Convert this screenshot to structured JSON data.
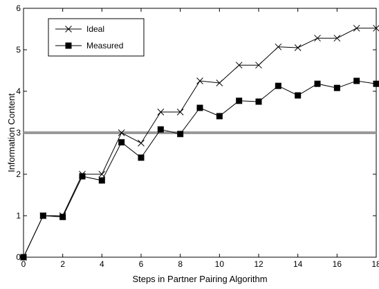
{
  "chart_data": {
    "type": "line",
    "title": "",
    "xlabel": "Steps in Partner Pairing Algorithm",
    "ylabel": "Information Content",
    "xlim": [
      0,
      18
    ],
    "ylim": [
      0,
      6
    ],
    "x_ticks": [
      0,
      2,
      4,
      6,
      8,
      10,
      12,
      14,
      16,
      18
    ],
    "y_ticks": [
      0,
      1,
      2,
      3,
      4,
      5,
      6
    ],
    "grid": false,
    "legend_position": "top-left",
    "x": [
      0,
      1,
      2,
      3,
      4,
      5,
      6,
      7,
      8,
      9,
      10,
      11,
      12,
      13,
      14,
      15,
      16,
      17,
      18
    ],
    "series": [
      {
        "name": "Ideal",
        "marker": "x",
        "color": "#000000",
        "values": [
          0,
          1.0,
          1.0,
          2.0,
          2.0,
          3.0,
          2.75,
          3.5,
          3.5,
          4.25,
          4.2,
          4.63,
          4.63,
          5.07,
          5.05,
          5.28,
          5.28,
          5.52,
          5.52
        ]
      },
      {
        "name": "Measured",
        "marker": "square",
        "color": "#000000",
        "values": [
          0,
          1.0,
          0.97,
          1.95,
          1.85,
          2.77,
          2.4,
          3.08,
          2.97,
          3.6,
          3.4,
          3.77,
          3.75,
          4.13,
          3.9,
          4.18,
          4.08,
          4.25,
          4.18
        ]
      }
    ],
    "reference_line": {
      "y": 3,
      "color": "#999999"
    }
  }
}
